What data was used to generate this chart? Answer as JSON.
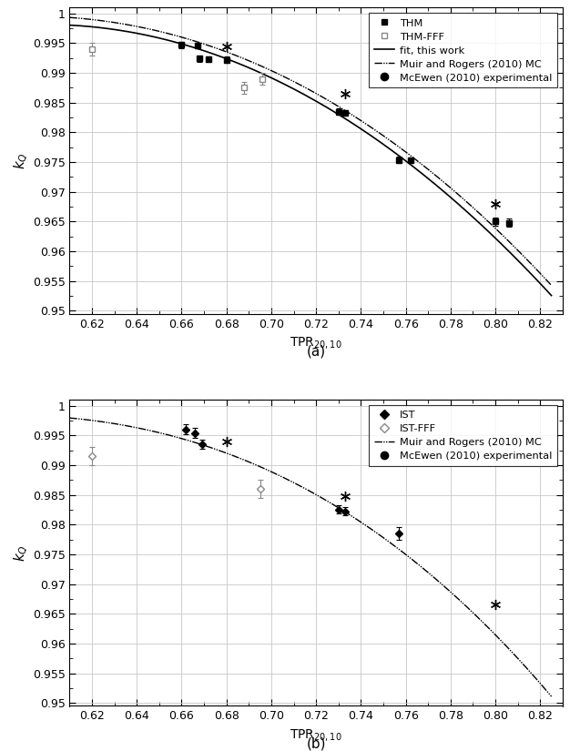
{
  "panel_a": {
    "THM": {
      "x": [
        0.66,
        0.667,
        0.668,
        0.672,
        0.68,
        0.73,
        0.733,
        0.757,
        0.762,
        0.8,
        0.806
      ],
      "y": [
        0.9947,
        0.9946,
        0.9924,
        0.9923,
        0.9922,
        0.9835,
        0.9833,
        0.9754,
        0.9753,
        0.965,
        0.9648
      ],
      "yerr": [
        0.0005,
        0.0005,
        0.0005,
        0.0005,
        0.0005,
        0.0005,
        0.0005,
        0.0005,
        0.0005,
        0.0007,
        0.0007
      ]
    },
    "THM_FFF": {
      "x": [
        0.62,
        0.688,
        0.696
      ],
      "y": [
        0.994,
        0.9875,
        0.989
      ],
      "yerr": [
        0.001,
        0.001,
        0.001
      ]
    },
    "McEwen": {
      "x": [
        0.68,
        0.733,
        0.8
      ],
      "y": [
        0.9945,
        0.9865,
        0.968
      ]
    },
    "fit": {
      "xp": [
        0.62,
        0.66,
        0.68,
        0.73,
        0.76,
        0.8,
        0.82
      ],
      "yp": [
        0.9978,
        0.995,
        0.992,
        0.9833,
        0.9755,
        0.9615,
        0.955
      ]
    },
    "muir": {
      "xp": [
        0.62,
        0.66,
        0.68,
        0.73,
        0.76,
        0.8,
        0.82
      ],
      "yp": [
        0.999,
        0.996,
        0.9935,
        0.9843,
        0.977,
        0.9635,
        0.9565
      ]
    }
  },
  "panel_b": {
    "IST": {
      "x": [
        0.662,
        0.666,
        0.669,
        0.73,
        0.733,
        0.757
      ],
      "y": [
        0.996,
        0.9954,
        0.9935,
        0.9825,
        0.9822,
        0.9785
      ],
      "yerr": [
        0.0008,
        0.0008,
        0.0008,
        0.0007,
        0.0007,
        0.001
      ]
    },
    "IST_FFF": {
      "x": [
        0.62,
        0.695
      ],
      "y": [
        0.9915,
        0.986
      ],
      "yerr": [
        0.0015,
        0.0015
      ]
    },
    "McEwen": {
      "x": [
        0.68,
        0.733,
        0.8
      ],
      "y": [
        0.994,
        0.9848,
        0.9665
      ]
    },
    "muir": {
      "xp": [
        0.62,
        0.66,
        0.68,
        0.73,
        0.76,
        0.8,
        0.82
      ],
      "yp": [
        0.9975,
        0.9945,
        0.992,
        0.9825,
        0.9755,
        0.961,
        0.9535
      ]
    }
  },
  "xlim": [
    0.61,
    0.83
  ],
  "ylim": [
    0.9495,
    1.001
  ],
  "xticks": [
    0.62,
    0.64,
    0.66,
    0.68,
    0.7,
    0.72,
    0.74,
    0.76,
    0.78,
    0.8,
    0.82
  ],
  "ytick_vals": [
    0.95,
    0.955,
    0.96,
    0.965,
    0.97,
    0.975,
    0.98,
    0.985,
    0.99,
    0.995,
    1.0
  ],
  "ytick_labels": [
    "0.95",
    "0.955",
    "0.96",
    "0.965",
    "0.97",
    "0.975",
    "0.98",
    "0.985",
    "0.99",
    "0.995",
    "1"
  ],
  "xlabel": "TPR$_{20,10}$",
  "ylabel": "$k_{Q}$"
}
